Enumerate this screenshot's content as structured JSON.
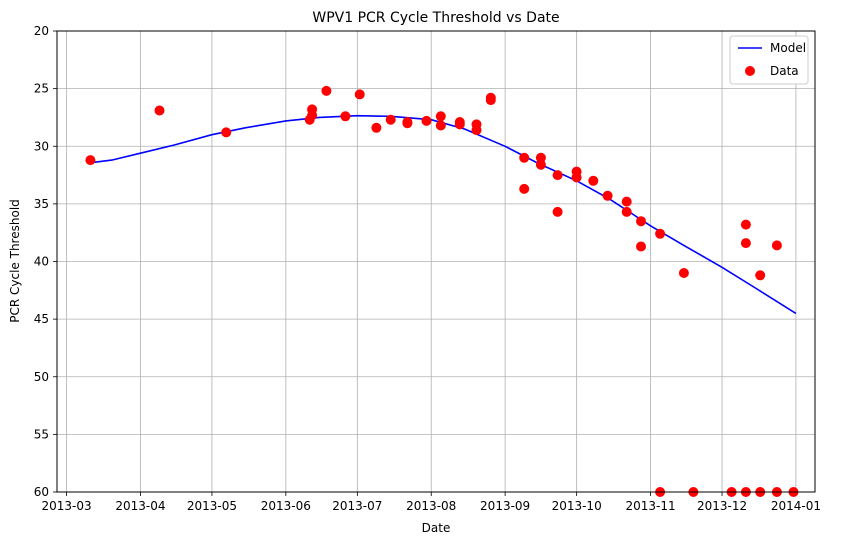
{
  "chart_data": {
    "type": "line+scatter",
    "title": "WPV1 PCR Cycle Threshold vs Date",
    "xlabel": "Date",
    "ylabel": "PCR Cycle Threshold",
    "y_inverted": true,
    "ylim": [
      60,
      20
    ],
    "yticks": [
      20,
      25,
      30,
      35,
      40,
      45,
      50,
      55,
      60
    ],
    "xlim": [
      "2013-02-25",
      "2014-01-09"
    ],
    "xticks": [
      "2013-03-01",
      "2013-04-01",
      "2013-05-01",
      "2013-06-01",
      "2013-07-01",
      "2013-08-01",
      "2013-09-01",
      "2013-10-01",
      "2013-11-01",
      "2013-12-01",
      "2014-01-01"
    ],
    "grid": true,
    "legend_position": "top-right",
    "colors": {
      "model": "#0000ff",
      "data": "#ff0000"
    },
    "series": [
      {
        "name": "Model",
        "kind": "line",
        "points": [
          [
            "2013-03-12",
            31.4
          ],
          [
            "2013-03-20",
            31.2
          ],
          [
            "2013-04-01",
            30.6
          ],
          [
            "2013-04-15",
            29.9
          ],
          [
            "2013-05-01",
            29.0
          ],
          [
            "2013-05-15",
            28.4
          ],
          [
            "2013-06-01",
            27.8
          ],
          [
            "2013-06-15",
            27.5
          ],
          [
            "2013-07-01",
            27.35
          ],
          [
            "2013-07-15",
            27.4
          ],
          [
            "2013-08-01",
            27.7
          ],
          [
            "2013-08-15",
            28.5
          ],
          [
            "2013-09-01",
            30.0
          ],
          [
            "2013-09-15",
            31.5
          ],
          [
            "2013-10-01",
            33.0
          ],
          [
            "2013-10-15",
            34.6
          ],
          [
            "2013-11-01",
            36.9
          ],
          [
            "2013-11-15",
            38.6
          ],
          [
            "2013-12-01",
            40.5
          ],
          [
            "2013-12-15",
            42.3
          ],
          [
            "2014-01-01",
            44.5
          ]
        ]
      },
      {
        "name": "Data",
        "kind": "scatter",
        "points": [
          [
            "2013-03-11",
            31.2
          ],
          [
            "2013-04-09",
            26.9
          ],
          [
            "2013-05-07",
            28.8
          ],
          [
            "2013-06-11",
            27.7
          ],
          [
            "2013-06-12",
            27.3
          ],
          [
            "2013-06-12",
            26.8
          ],
          [
            "2013-06-18",
            25.2
          ],
          [
            "2013-06-26",
            27.4
          ],
          [
            "2013-07-02",
            25.5
          ],
          [
            "2013-07-09",
            28.4
          ],
          [
            "2013-07-15",
            27.7
          ],
          [
            "2013-07-22",
            27.9
          ],
          [
            "2013-07-22",
            28.0
          ],
          [
            "2013-07-30",
            27.8
          ],
          [
            "2013-08-05",
            27.4
          ],
          [
            "2013-08-05",
            28.2
          ],
          [
            "2013-08-13",
            27.9
          ],
          [
            "2013-08-13",
            28.1
          ],
          [
            "2013-08-20",
            28.1
          ],
          [
            "2013-08-20",
            28.6
          ],
          [
            "2013-08-26",
            25.8
          ],
          [
            "2013-08-26",
            26.0
          ],
          [
            "2013-09-09",
            31.0
          ],
          [
            "2013-09-09",
            33.7
          ],
          [
            "2013-09-16",
            31.0
          ],
          [
            "2013-09-16",
            31.6
          ],
          [
            "2013-09-23",
            32.5
          ],
          [
            "2013-09-23",
            35.7
          ],
          [
            "2013-10-01",
            32.2
          ],
          [
            "2013-10-01",
            32.7
          ],
          [
            "2013-10-08",
            33.0
          ],
          [
            "2013-10-14",
            34.3
          ],
          [
            "2013-10-22",
            34.8
          ],
          [
            "2013-10-22",
            35.7
          ],
          [
            "2013-10-28",
            36.5
          ],
          [
            "2013-10-28",
            38.7
          ],
          [
            "2013-11-05",
            37.6
          ],
          [
            "2013-11-05",
            60.0
          ],
          [
            "2013-11-15",
            41.0
          ],
          [
            "2013-11-19",
            60.0
          ],
          [
            "2013-12-05",
            60.0
          ],
          [
            "2013-12-11",
            36.8
          ],
          [
            "2013-12-11",
            38.4
          ],
          [
            "2013-12-11",
            60.0
          ],
          [
            "2013-12-17",
            41.2
          ],
          [
            "2013-12-17",
            60.0
          ],
          [
            "2013-12-24",
            38.6
          ],
          [
            "2013-12-24",
            60.0
          ],
          [
            "2013-12-31",
            60.0
          ]
        ]
      }
    ]
  }
}
